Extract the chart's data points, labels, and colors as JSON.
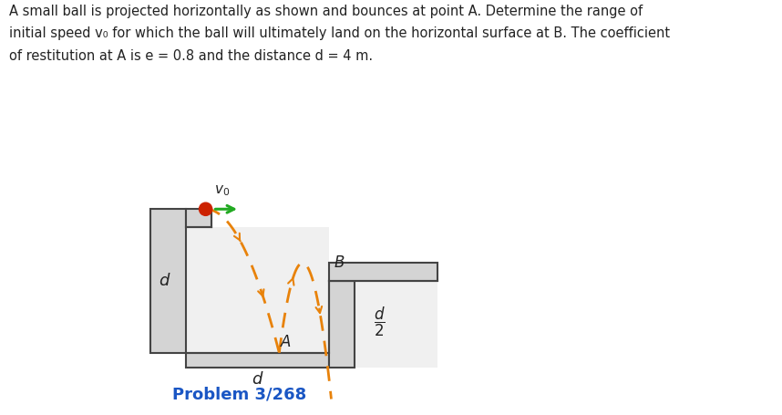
{
  "background_color": "#ffffff",
  "structure_facecolor": "#d4d4d4",
  "structure_edge_color": "#444444",
  "ball_color": "#cc2200",
  "arrow_color": "#22aa22",
  "trajectory_color": "#e8820a",
  "text_color": "#222222",
  "problem_color": "#1a56c4",
  "problem_label": "Problem 3/268",
  "v0_label": "v₀",
  "label_A": "A",
  "label_B": "B",
  "label_d_left": "d",
  "label_d_bottom": "d",
  "label_d2": "d",
  "label_2": "2"
}
